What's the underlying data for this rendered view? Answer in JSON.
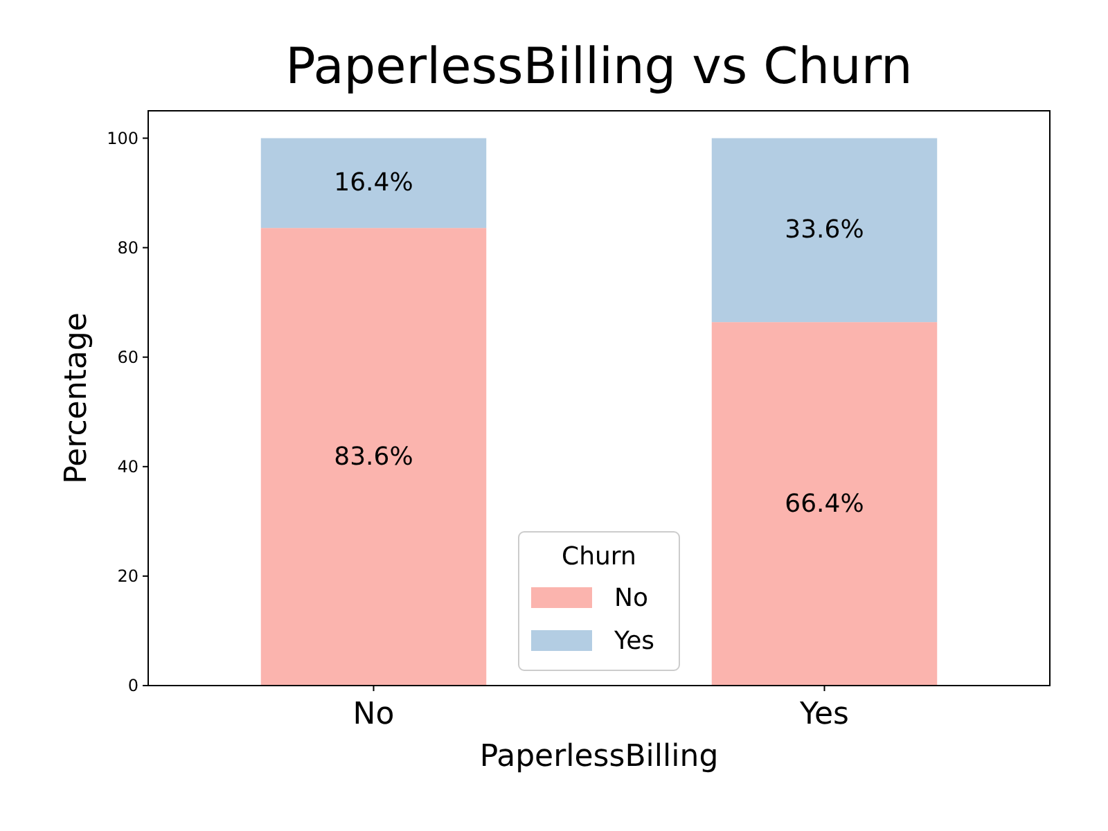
{
  "chart_data": {
    "type": "bar",
    "title": "PaperlessBilling vs Churn",
    "xlabel": "PaperlessBilling",
    "ylabel": "Percentage",
    "legend_title": "Churn",
    "categories": [
      "No",
      "Yes"
    ],
    "series": [
      {
        "name": "No",
        "color": "#fbb4ae",
        "values": [
          83.6,
          66.4
        ],
        "value_labels": [
          "83.6%",
          "66.4%"
        ]
      },
      {
        "name": "Yes",
        "color": "#b3cde3",
        "values": [
          16.4,
          33.6
        ],
        "value_labels": [
          "16.4%",
          "33.6%"
        ]
      }
    ],
    "stacked": true,
    "ylim": [
      0,
      105
    ],
    "yticks": [
      0,
      20,
      40,
      60,
      80,
      100
    ],
    "legend": "bottom"
  }
}
